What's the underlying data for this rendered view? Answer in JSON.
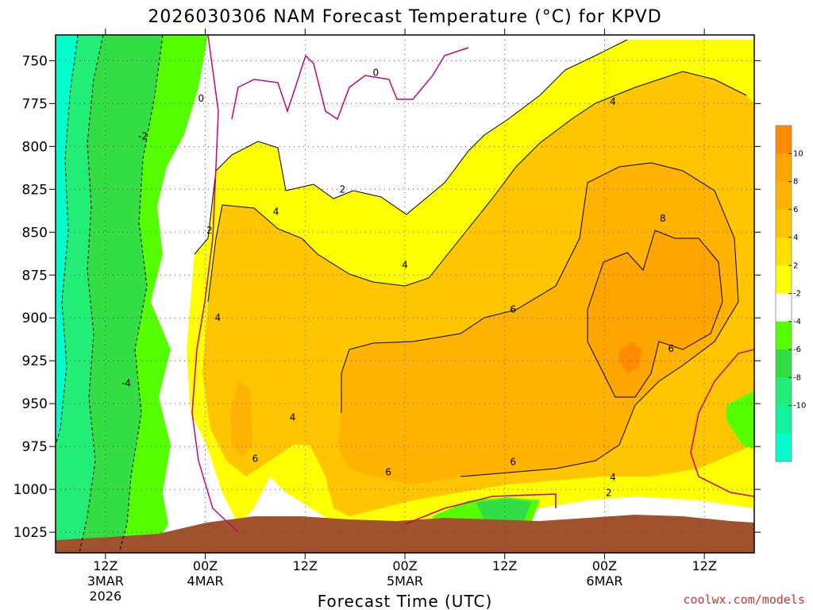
{
  "chart_data": {
    "type": "heatmap",
    "title": "2026030306 NAM Forecast Temperature (°C) for KPVD",
    "xlabel": "Forecast Time (UTC)",
    "ylabel": "",
    "y_axis": {
      "reversed": true,
      "ticks": [
        750,
        775,
        800,
        825,
        850,
        875,
        900,
        925,
        950,
        975,
        1000,
        1025
      ],
      "tick_labels": [
        "750",
        "775",
        "800",
        "825",
        "850",
        "875",
        "900",
        "925",
        "950",
        "975",
        "1000",
        "1025"
      ],
      "ylim": [
        735,
        1037
      ]
    },
    "x_axis": {
      "xlim_hours": [
        6,
        90
      ],
      "ticks": [
        {
          "hour": 12,
          "lines": [
            "12Z",
            "3MAR",
            "2026"
          ]
        },
        {
          "hour": 24,
          "lines": [
            "00Z",
            "4MAR"
          ]
        },
        {
          "hour": 36,
          "lines": [
            "12Z"
          ]
        },
        {
          "hour": 48,
          "lines": [
            "00Z",
            "5MAR"
          ]
        },
        {
          "hour": 60,
          "lines": [
            "12Z"
          ]
        },
        {
          "hour": 72,
          "lines": [
            "00Z",
            "6MAR"
          ]
        },
        {
          "hour": 84,
          "lines": [
            "12Z"
          ]
        }
      ]
    },
    "colorbar": {
      "labels": [
        "10",
        "8",
        "6",
        "4",
        "2",
        "-2",
        "-4",
        "-6",
        "-8",
        "-10"
      ],
      "colors": [
        "#ff8c00",
        "#ffa500",
        "#ffb300",
        "#ffc600",
        "#ffe000",
        "#ffff00",
        "#ffffff",
        "#55ff00",
        "#33dd44",
        "#22ee77",
        "#11f2a0",
        "#00ffcc"
      ]
    },
    "contour_labels": [
      {
        "text": "0",
        "hour": 23.5,
        "pressure": 772
      },
      {
        "text": "0",
        "hour": 44.5,
        "pressure": 757
      },
      {
        "text": "-2",
        "hour": 16.5,
        "pressure": 794
      },
      {
        "text": "2",
        "hour": 24.5,
        "pressure": 849
      },
      {
        "text": "2",
        "hour": 40.5,
        "pressure": 825
      },
      {
        "text": "4",
        "hour": 32.5,
        "pressure": 838
      },
      {
        "text": "4",
        "hour": 25.5,
        "pressure": 900
      },
      {
        "text": "4",
        "hour": 34.5,
        "pressure": 958
      },
      {
        "text": "4",
        "hour": 48,
        "pressure": 869
      },
      {
        "text": "4",
        "hour": 73,
        "pressure": 774
      },
      {
        "text": "4",
        "hour": 73,
        "pressure": 993
      },
      {
        "text": "-4",
        "hour": 14.5,
        "pressure": 938
      },
      {
        "text": "6",
        "hour": 30,
        "pressure": 982
      },
      {
        "text": "6",
        "hour": 46,
        "pressure": 990
      },
      {
        "text": "6",
        "hour": 61,
        "pressure": 895
      },
      {
        "text": "6",
        "hour": 61,
        "pressure": 984
      },
      {
        "text": "6",
        "hour": 80,
        "pressure": 918
      },
      {
        "text": "8",
        "hour": 79,
        "pressure": 842
      },
      {
        "text": "2",
        "hour": 72.5,
        "pressure": 1002
      }
    ],
    "series": [
      {
        "name": "terrain (below ground)",
        "color": "#a0522d"
      }
    ],
    "credit": "coolwx.com/models"
  }
}
